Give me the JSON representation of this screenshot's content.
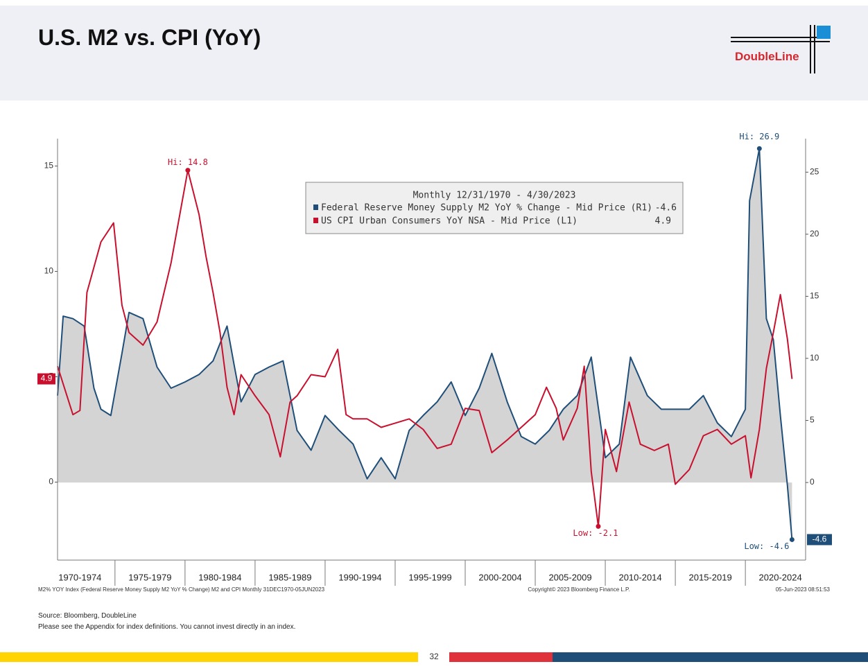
{
  "header": {
    "title": "U.S. M2 vs. CPI (YoY)",
    "logo": "DoubleLine"
  },
  "chart_data": {
    "type": "line",
    "legend": {
      "title": "Monthly 12/31/1970 - 4/30/2023"
    },
    "xlim": [
      1970.9,
      2024.3
    ],
    "xticks": [
      {
        "value": 1972.5,
        "label": "1970-1974"
      },
      {
        "value": 1977.5,
        "label": "1975-1979"
      },
      {
        "value": 1982.5,
        "label": "1980-1984"
      },
      {
        "value": 1987.5,
        "label": "1985-1989"
      },
      {
        "value": 1992.5,
        "label": "1990-1994"
      },
      {
        "value": 1997.5,
        "label": "1995-1999"
      },
      {
        "value": 2002.5,
        "label": "2000-2004"
      },
      {
        "value": 2007.5,
        "label": "2005-2009"
      },
      {
        "value": 2012.5,
        "label": "2010-2014"
      },
      {
        "value": 2017.5,
        "label": "2015-2019"
      },
      {
        "value": 2022.5,
        "label": "2020-2024"
      }
    ],
    "ylim": [
      -3.7,
      16.3
    ],
    "yticks": [
      0,
      5,
      10,
      15
    ],
    "y2lim": [
      -6.25,
      27.7
    ],
    "y2ticks": [
      0,
      5,
      10,
      15,
      20,
      25
    ],
    "series": [
      {
        "name": "Federal Reserve Money Supply M2 YoY % Change - Mid Price (R1)",
        "color": "#1f4e79",
        "axis": "y2",
        "fill": "#d4d4d4",
        "x": [
          1970.9,
          1971.3,
          1972,
          1972.8,
          1973.5,
          1974,
          1974.7,
          1975.5,
          1976,
          1977,
          1978,
          1979,
          1980,
          1981,
          1982,
          1983,
          1983.5,
          1984,
          1985,
          1986,
          1987,
          1988,
          1989,
          1990,
          1991,
          1992,
          1993,
          1994,
          1995,
          1996,
          1997,
          1998,
          1999,
          2000,
          2001,
          2001.9,
          2003,
          2004,
          2005,
          2006,
          2007,
          2008,
          2009,
          2010,
          2011,
          2011.8,
          2013,
          2014,
          2015,
          2016,
          2017,
          2018,
          2019,
          2020,
          2020.3,
          2021,
          2021.5,
          2022,
          2022.5,
          2023,
          2023.33
        ],
        "values": [
          7.0,
          13.4,
          13.2,
          12.6,
          7.6,
          5.9,
          5.4,
          10.4,
          13.7,
          13.2,
          9.3,
          7.6,
          8.1,
          8.7,
          9.8,
          12.6,
          9.5,
          6.5,
          8.7,
          9.3,
          9.8,
          4.2,
          2.6,
          5.4,
          4.2,
          3.1,
          0.3,
          2.0,
          0.3,
          4.2,
          5.4,
          6.5,
          8.1,
          5.4,
          7.6,
          10.4,
          6.5,
          3.7,
          3.1,
          4.2,
          5.9,
          7.0,
          10.1,
          2.0,
          3.1,
          10.1,
          7.0,
          5.9,
          5.9,
          5.9,
          7.0,
          4.8,
          3.7,
          5.9,
          22.7,
          26.9,
          13.2,
          11.5,
          5.4,
          -0.2,
          -4.6
        ]
      },
      {
        "name": "US CPI Urban Consumers YoY NSA - Mid Price (L1)",
        "color": "#c8102e",
        "axis": "y",
        "x": [
          1970.9,
          1972,
          1972.5,
          1973,
          1974,
          1974.9,
          1975.5,
          1976,
          1977,
          1978,
          1979,
          1980.2,
          1981,
          1981.5,
          1982,
          1982.5,
          1983,
          1983.5,
          1984,
          1985,
          1986,
          1986.8,
          1987.5,
          1988,
          1989,
          1990,
          1990.9,
          1991.5,
          1992,
          1993,
          1994,
          1995,
          1996,
          1997,
          1998,
          1999,
          2000,
          2001,
          2001.9,
          2003,
          2004,
          2005,
          2005.8,
          2006.5,
          2007,
          2008,
          2008.5,
          2009,
          2009.5,
          2010,
          2010.8,
          2011.7,
          2012.5,
          2013.5,
          2014.5,
          2015,
          2016,
          2017,
          2018,
          2019,
          2020,
          2020.4,
          2021,
          2021.5,
          2022,
          2022.5,
          2023,
          2023.33
        ],
        "values": [
          5.5,
          3.2,
          3.4,
          9.0,
          11.4,
          12.3,
          8.4,
          7.1,
          6.5,
          7.6,
          10.4,
          14.8,
          12.7,
          10.7,
          9.0,
          7.1,
          4.5,
          3.2,
          5.1,
          4.1,
          3.2,
          1.2,
          3.8,
          4.1,
          5.1,
          5.0,
          6.3,
          3.2,
          3.0,
          3.0,
          2.6,
          2.8,
          3.0,
          2.5,
          1.6,
          1.8,
          3.5,
          3.4,
          1.4,
          2.0,
          2.6,
          3.2,
          4.5,
          3.5,
          2.0,
          3.5,
          5.5,
          0.5,
          -2.1,
          2.5,
          0.5,
          3.8,
          1.8,
          1.5,
          1.8,
          -0.1,
          0.6,
          2.2,
          2.5,
          1.8,
          2.2,
          0.2,
          2.5,
          5.4,
          7.1,
          8.9,
          6.8,
          4.9
        ]
      }
    ],
    "annotations": [
      {
        "text": "Hi: 14.8",
        "x": 1980.2,
        "y": 14.8,
        "axis": "y",
        "color": "#c8102e"
      },
      {
        "text": "Low: -2.1",
        "x": 2009.5,
        "y": -2.1,
        "axis": "y",
        "color": "#c8102e"
      },
      {
        "text": "Hi: 26.9",
        "x": 2021,
        "y": 26.9,
        "axis": "y2",
        "color": "#1f4e79"
      },
      {
        "text": "Low: -4.6",
        "x": 2023.33,
        "y": -4.6,
        "axis": "y2",
        "color": "#1f4e79"
      }
    ],
    "footnotes": [
      "M2% YOY Index (Federal Reserve Money Supply M2 YoY % Change) M2 and CPI  Monthly 31DEC1970-05JUN2023",
      "Copyright© 2023 Bloomberg Finance L.P.",
      "05-Jun-2023 08:51:53"
    ]
  },
  "source": [
    "Source: Bloomberg, DoubleLine",
    "Please see the Appendix for index definitions. You cannot invest directly in an index."
  ],
  "page_number": "32"
}
